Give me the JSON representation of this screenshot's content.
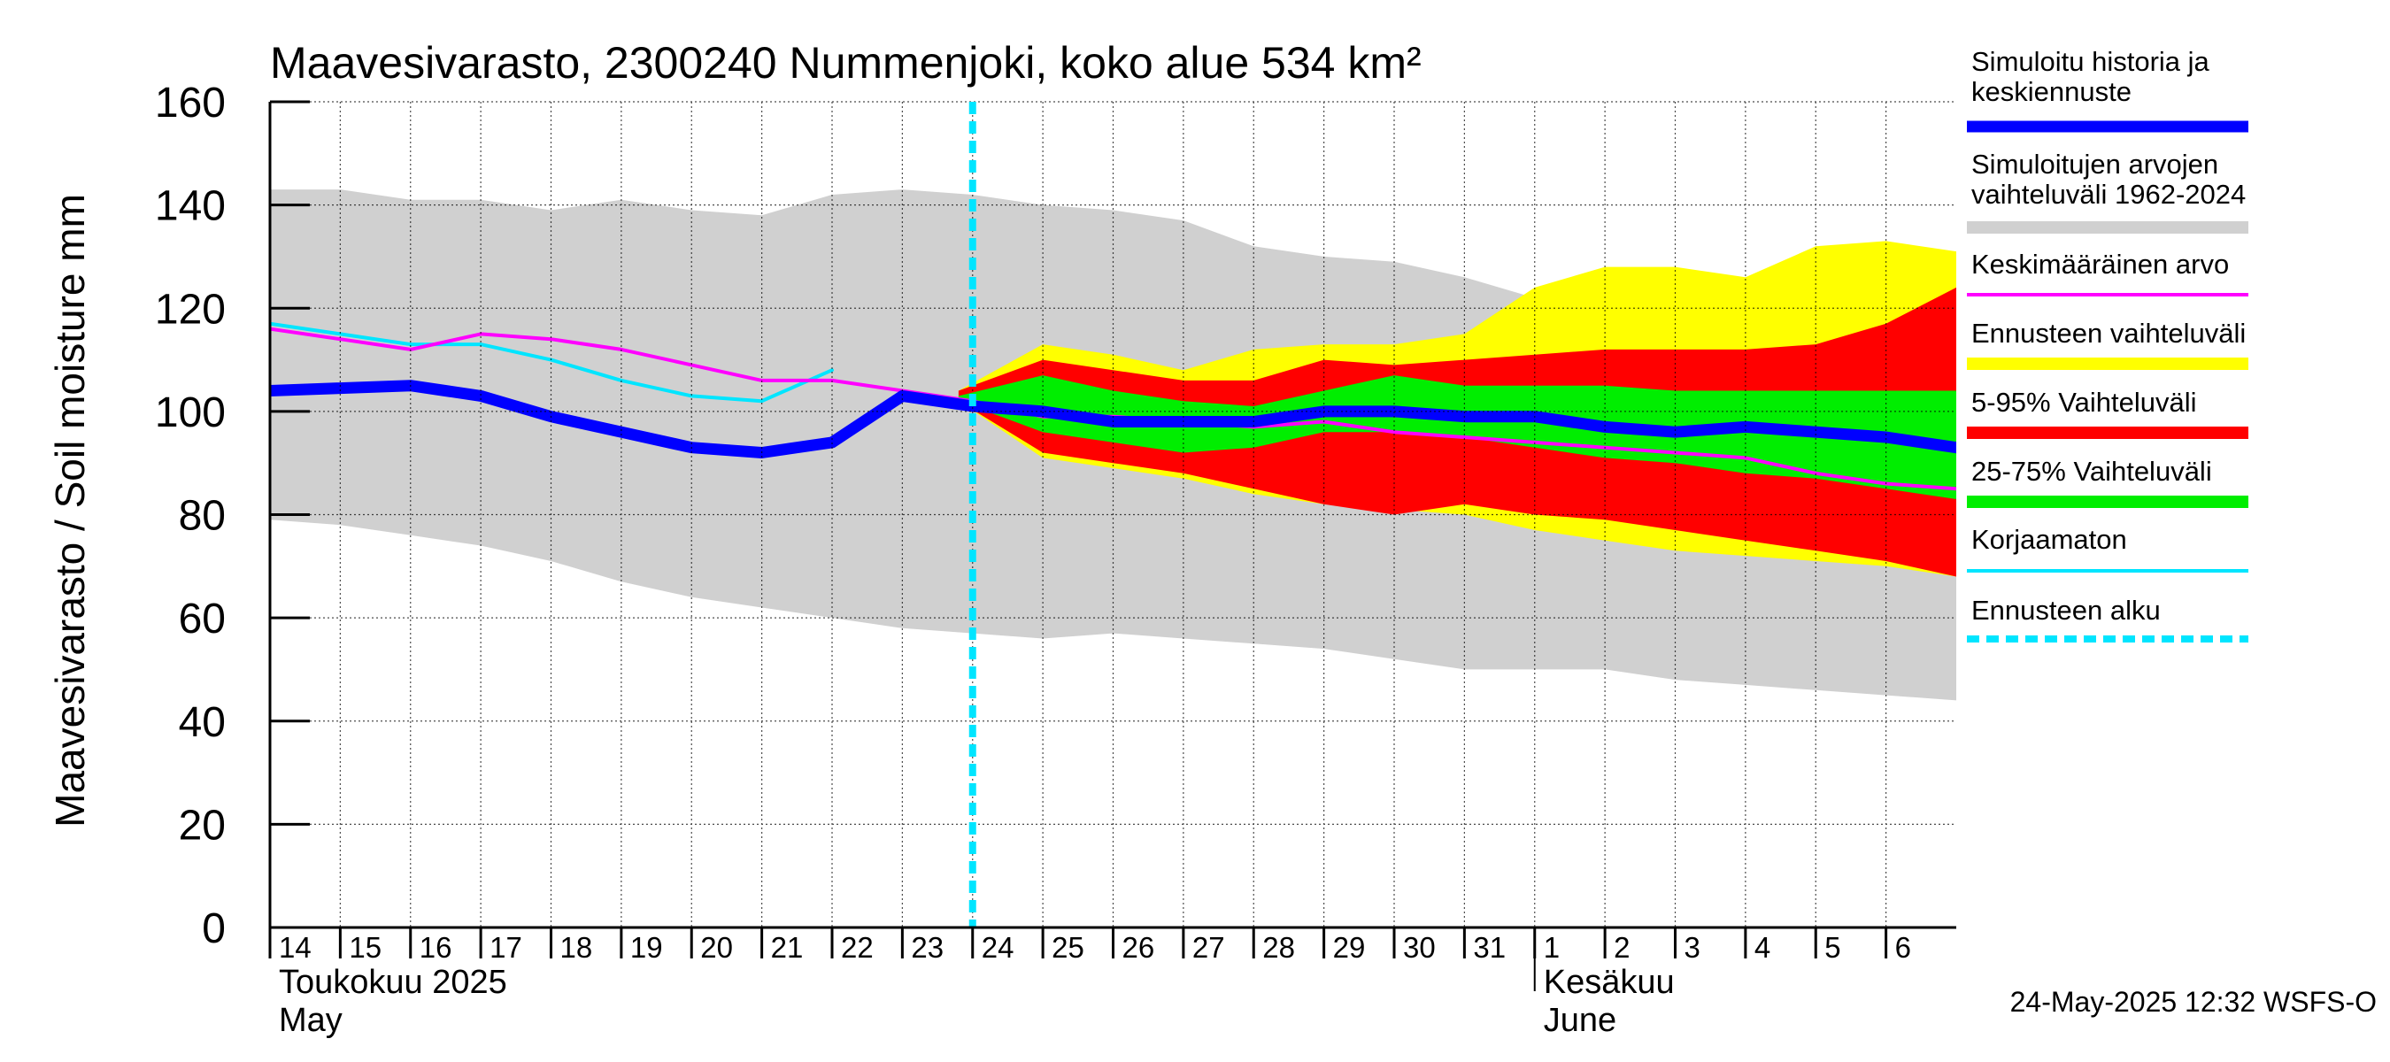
{
  "chart_data": {
    "type": "area",
    "title": "Maavesivarasto, 2300240 Nummenjoki, koko alue 534 km²",
    "ylabel": "Maavesivarasto / Soil moisture   mm",
    "ylim": [
      0,
      160
    ],
    "yticks": [
      0,
      20,
      40,
      60,
      80,
      100,
      120,
      140,
      160
    ],
    "x_start_day": 14,
    "x_end_day": 38,
    "day_ticks": [
      14,
      15,
      16,
      17,
      18,
      19,
      20,
      21,
      22,
      23,
      24,
      25,
      26,
      27,
      28,
      29,
      30,
      31,
      32,
      33,
      34,
      35,
      36,
      37
    ],
    "day_labels": [
      "14",
      "15",
      "16",
      "17",
      "18",
      "19",
      "20",
      "21",
      "22",
      "23",
      "24",
      "25",
      "26",
      "27",
      "28",
      "29",
      "30",
      "31",
      "1",
      "2",
      "3",
      "4",
      "5",
      "6"
    ],
    "month_labels": [
      {
        "fi": "Toukokuu  2025",
        "en": "May",
        "day": 14
      },
      {
        "fi": "Kesäkuu",
        "en": "June",
        "day": 32
      }
    ],
    "forecast_start_day": 24.0,
    "timestamp": "24-May-2025 12:32 WSFS-O",
    "x": [
      14,
      15,
      16,
      17,
      18,
      19,
      20,
      21,
      22,
      23,
      24,
      25,
      26,
      27,
      28,
      29,
      30,
      31,
      32,
      33,
      34,
      35,
      36,
      37,
      38
    ],
    "bands": {
      "historical_range": {
        "upper": [
          143,
          143,
          141,
          141,
          139,
          141,
          139,
          138,
          142,
          143,
          142,
          140,
          139,
          137,
          132,
          130,
          129,
          126,
          122,
          122,
          122,
          121,
          120,
          120,
          120
        ],
        "lower": [
          79,
          78,
          76,
          74,
          71,
          67,
          64,
          62,
          60,
          58,
          57,
          56,
          57,
          56,
          55,
          54,
          52,
          50,
          50,
          50,
          48,
          47,
          46,
          45,
          44
        ]
      },
      "forecast_range": {
        "x": [
          23.8,
          25,
          26,
          27,
          28,
          29,
          30,
          31,
          32,
          33,
          34,
          35,
          36,
          37,
          38
        ],
        "upper": [
          104,
          113,
          111,
          108,
          112,
          113,
          113,
          115,
          124,
          128,
          128,
          126,
          132,
          133,
          131
        ],
        "lower": [
          102,
          91,
          89,
          87,
          84,
          82,
          81,
          80,
          77,
          75,
          73,
          72,
          71,
          70,
          68
        ]
      },
      "p5_95": {
        "x": [
          23.8,
          25,
          26,
          27,
          28,
          29,
          30,
          31,
          32,
          33,
          34,
          35,
          36,
          37,
          38
        ],
        "upper": [
          104,
          110,
          108,
          106,
          106,
          110,
          109,
          110,
          111,
          112,
          112,
          112,
          113,
          117,
          124
        ],
        "lower": [
          102,
          92,
          90,
          88,
          85,
          82,
          80,
          82,
          80,
          79,
          77,
          75,
          73,
          71,
          68
        ]
      },
      "p25_75": {
        "x": [
          23.8,
          25,
          26,
          27,
          28,
          29,
          30,
          31,
          32,
          33,
          34,
          35,
          36,
          37,
          38
        ],
        "upper": [
          103,
          107,
          104,
          102,
          101,
          104,
          107,
          105,
          105,
          105,
          104,
          104,
          104,
          104,
          104
        ]
      }
    },
    "bands_lower_p25_75": [
      102,
      96,
      94,
      92,
      93,
      96,
      96,
      95,
      93,
      91,
      90,
      88,
      87,
      85,
      83
    ],
    "series": [
      {
        "name": "Simuloitu historia ja keskiennuste",
        "color": "#0000ff",
        "x": [
          14,
          15,
          16,
          17,
          18,
          19,
          20,
          21,
          22,
          23,
          24,
          25,
          26,
          27,
          28,
          29,
          30,
          31,
          32,
          33,
          34,
          35,
          36,
          37,
          38
        ],
        "values": [
          104,
          104.5,
          105,
          103,
          99,
          96,
          93,
          92,
          94,
          103,
          101,
          100,
          98,
          98,
          98,
          100,
          100,
          99,
          99,
          97,
          96,
          97,
          96,
          95,
          93
        ]
      },
      {
        "name": "Keskimääräinen arvo",
        "color": "#ff00ff",
        "x": [
          14,
          15,
          16,
          17,
          18,
          19,
          20,
          21,
          22,
          23,
          24,
          25,
          26,
          27,
          28,
          29,
          30,
          31,
          32,
          33,
          34,
          35,
          36,
          37,
          38
        ],
        "values": [
          116,
          114,
          112,
          115,
          114,
          112,
          109,
          106,
          106,
          104,
          102,
          99,
          99,
          98,
          97,
          98,
          96,
          95,
          94,
          93,
          92,
          91,
          88,
          86,
          85
        ]
      },
      {
        "name": "Korjaamaton",
        "color": "#00e5ff",
        "x": [
          14,
          15,
          16,
          17,
          18,
          19,
          20,
          21,
          22
        ],
        "values": [
          117,
          115,
          113,
          113,
          110,
          106,
          103,
          102,
          108
        ]
      }
    ],
    "legend": [
      {
        "label": "Simuloitu historia ja keskiennuste",
        "color": "#0000ff",
        "style": "thick"
      },
      {
        "label": "Simuloitujen arvojen vaihteluväli 1962-2024",
        "color": "#d0d0d0",
        "style": "band"
      },
      {
        "label": "Keskimääräinen arvo",
        "color": "#ff00ff",
        "style": "line"
      },
      {
        "label": "Ennusteen vaihteluväli",
        "color": "#ffff00",
        "style": "band"
      },
      {
        "label": "5-95% Vaihteluväli",
        "color": "#ff0000",
        "style": "band"
      },
      {
        "label": "25-75% Vaihteluväli",
        "color": "#00ee00",
        "style": "band"
      },
      {
        "label": "Korjaamaton",
        "color": "#00e5ff",
        "style": "line"
      },
      {
        "label": "Ennusteen alku",
        "color": "#00e5ff",
        "style": "dashed"
      }
    ]
  }
}
